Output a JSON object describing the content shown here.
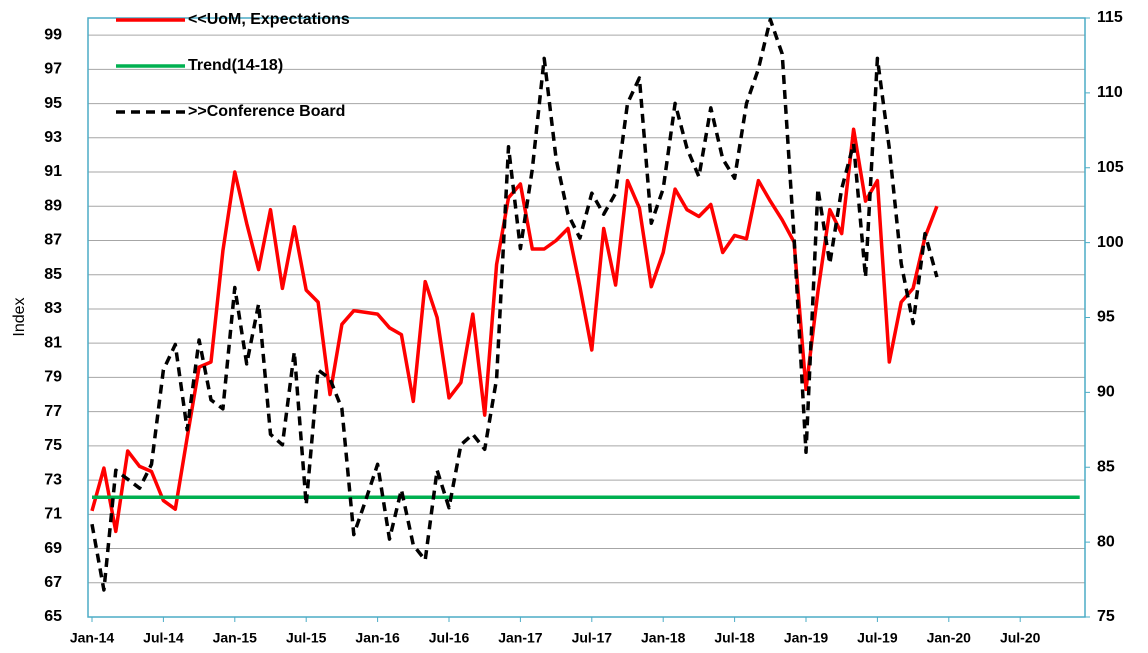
{
  "chart_data": {
    "type": "line",
    "ylabel": "Index",
    "x": [
      "2014-01",
      "2014-02",
      "2014-03",
      "2014-04",
      "2014-05",
      "2014-06",
      "2014-07",
      "2014-08",
      "2014-09",
      "2014-10",
      "2014-11",
      "2014-12",
      "2015-01",
      "2015-02",
      "2015-03",
      "2015-04",
      "2015-05",
      "2015-06",
      "2015-07",
      "2015-08",
      "2015-09",
      "2015-10",
      "2015-11",
      "2015-12",
      "2016-01",
      "2016-02",
      "2016-03",
      "2016-04",
      "2016-05",
      "2016-06",
      "2016-07",
      "2016-08",
      "2016-09",
      "2016-10",
      "2016-11",
      "2016-12",
      "2017-01",
      "2017-02",
      "2017-03",
      "2017-04",
      "2017-05",
      "2017-06",
      "2017-07",
      "2017-08",
      "2017-09",
      "2017-10",
      "2017-11",
      "2017-12",
      "2018-01",
      "2018-02",
      "2018-03",
      "2018-04",
      "2018-05",
      "2018-06",
      "2018-07",
      "2018-08",
      "2018-09",
      "2018-10",
      "2018-11",
      "2018-12",
      "2019-01",
      "2019-02",
      "2019-03",
      "2019-04",
      "2019-05",
      "2019-06",
      "2019-07",
      "2019-08",
      "2019-09",
      "2019-10",
      "2019-11",
      "2019-12",
      "2020-01",
      "2020-02",
      "2020-03",
      "2020-04",
      "2020-05",
      "2020-06",
      "2020-07",
      "2020-08",
      "2020-09",
      "2020-10",
      "2020-11",
      "2020-12"
    ],
    "series": [
      {
        "name": "<<UoM, Expectations",
        "color": "#ff0000",
        "axis": "y",
        "style": "solid",
        "values": [
          71.2,
          73.7,
          70.0,
          74.7,
          73.8,
          73.5,
          71.8,
          71.3,
          75.5,
          79.6,
          79.9,
          86.4,
          91.0,
          88.0,
          85.3,
          88.8,
          84.2,
          87.8,
          84.1,
          83.4,
          78.0,
          82.1,
          82.9,
          82.8,
          82.7,
          81.9,
          81.5,
          77.6,
          84.6,
          82.5,
          77.8,
          78.7,
          82.7,
          76.8,
          85.6,
          89.5,
          90.3,
          86.5,
          86.5,
          87.0,
          87.7,
          84.3,
          80.6,
          87.7,
          84.4,
          90.5,
          88.9,
          84.3,
          86.3,
          90.0,
          88.8,
          88.4,
          89.1,
          86.3,
          87.3,
          87.1,
          90.5,
          89.3,
          88.2,
          86.9,
          78.3,
          84.0,
          88.8,
          87.4,
          93.5,
          89.3,
          90.5,
          79.9,
          83.4,
          84.2,
          87.2,
          89.0,
          null,
          null,
          null,
          null,
          null,
          null,
          null,
          null,
          null,
          null,
          null,
          null
        ]
      },
      {
        "name": "Trend(14-18)",
        "color": "#00b050",
        "axis": "y",
        "style": "solid",
        "values": [
          72,
          72,
          72,
          72,
          72,
          72,
          72,
          72,
          72,
          72,
          72,
          72,
          72,
          72,
          72,
          72,
          72,
          72,
          72,
          72,
          72,
          72,
          72,
          72,
          72,
          72,
          72,
          72,
          72,
          72,
          72,
          72,
          72,
          72,
          72,
          72,
          72,
          72,
          72,
          72,
          72,
          72,
          72,
          72,
          72,
          72,
          72,
          72,
          72,
          72,
          72,
          72,
          72,
          72,
          72,
          72,
          72,
          72,
          72,
          72,
          72,
          72,
          72,
          72,
          72,
          72,
          72,
          72,
          72,
          72,
          72,
          72,
          72,
          72,
          72,
          72,
          72,
          72,
          72,
          72,
          72,
          72,
          72,
          72
        ]
      },
      {
        "name": ">>Conference Board",
        "color": "#000000",
        "axis": "y2",
        "style": "dashed",
        "values": [
          81.2,
          76.8,
          84.8,
          84.2,
          83.6,
          85.2,
          91.5,
          93.2,
          87.5,
          93.5,
          89.5,
          88.9,
          97.0,
          91.9,
          95.9,
          87.2,
          86.5,
          92.7,
          82.5,
          91.5,
          90.9,
          88.9,
          80.5,
          82.8,
          85.2,
          80.2,
          83.5,
          79.8,
          78.8,
          84.8,
          82.3,
          86.5,
          87.2,
          86.2,
          90.9,
          106.4,
          99.6,
          104.9,
          112.3,
          105.6,
          101.9,
          100.3,
          103.3,
          101.9,
          103.3,
          109.3,
          111.0,
          101.3,
          103.6,
          109.3,
          106.3,
          104.4,
          109.0,
          105.6,
          104.3,
          109.3,
          111.6,
          114.9,
          112.6,
          100.3,
          86.0,
          103.6,
          98.6,
          103.6,
          106.6,
          97.7,
          112.3,
          106.3,
          98.6,
          94.6,
          100.6,
          97.7,
          null,
          null,
          null,
          null,
          null,
          null,
          null,
          null,
          null,
          null,
          null,
          null
        ]
      }
    ],
    "ylim": [
      65,
      100
    ],
    "yticks": [
      65,
      67,
      69,
      71,
      73,
      75,
      77,
      79,
      81,
      83,
      85,
      87,
      89,
      91,
      93,
      95,
      97,
      99
    ],
    "y2lim": [
      75,
      115
    ],
    "y2ticks": [
      75,
      80,
      85,
      90,
      95,
      100,
      105,
      110,
      115
    ],
    "xticks": [
      {
        "value": "2014-01",
        "label": "Jan-14"
      },
      {
        "value": "2014-07",
        "label": "Jul-14"
      },
      {
        "value": "2015-01",
        "label": "Jan-15"
      },
      {
        "value": "2015-07",
        "label": "Jul-15"
      },
      {
        "value": "2016-01",
        "label": "Jan-16"
      },
      {
        "value": "2016-07",
        "label": "Jul-16"
      },
      {
        "value": "2017-01",
        "label": "Jan-17"
      },
      {
        "value": "2017-07",
        "label": "Jul-17"
      },
      {
        "value": "2018-01",
        "label": "Jan-18"
      },
      {
        "value": "2018-07",
        "label": "Jul-18"
      },
      {
        "value": "2019-01",
        "label": "Jan-19"
      },
      {
        "value": "2019-07",
        "label": "Jul-19"
      },
      {
        "value": "2020-01",
        "label": "Jan-20"
      },
      {
        "value": "2020-07",
        "label": "Jul-20"
      }
    ],
    "grid": true,
    "legend": "top-left"
  }
}
